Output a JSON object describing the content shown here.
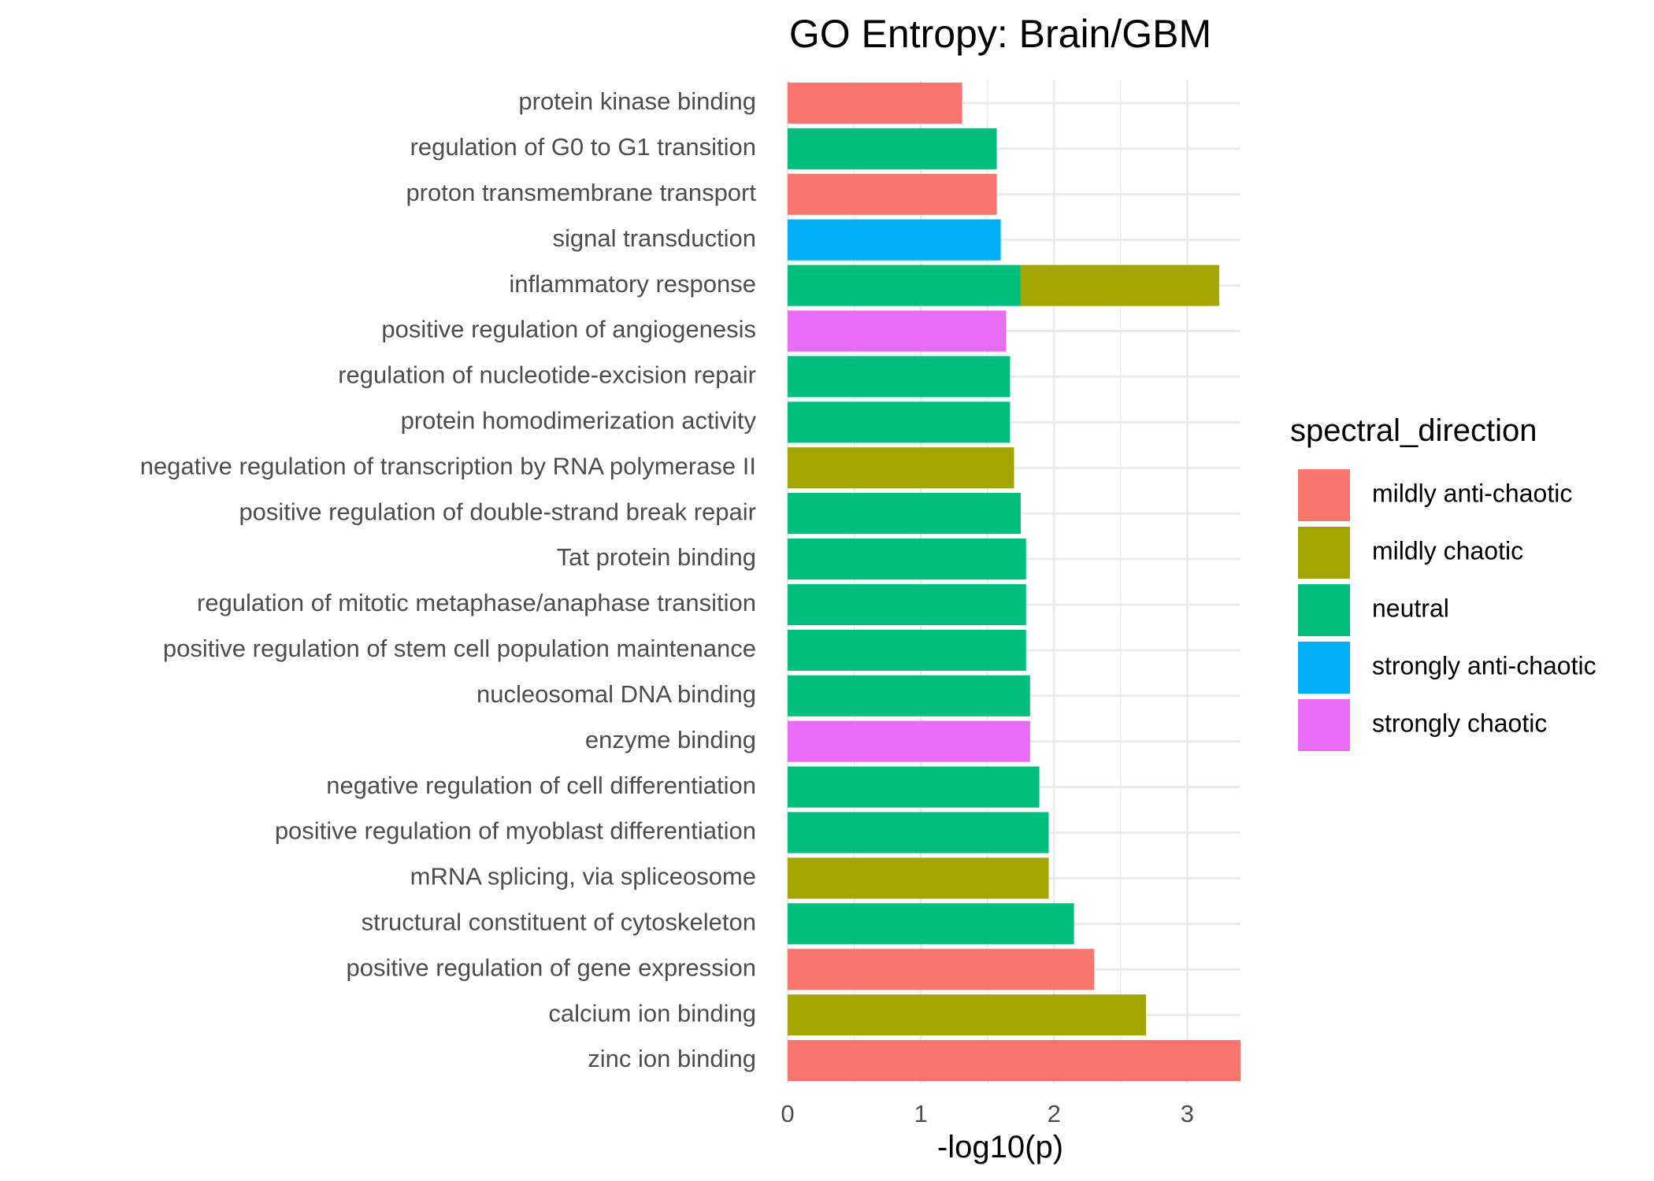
{
  "chart_data": {
    "type": "bar",
    "orientation": "horizontal",
    "stacked": true,
    "title": "GO Entropy: Brain/GBM",
    "xlabel": "-log10(p)",
    "ylabel": "",
    "xlim": [
      0,
      3.4
    ],
    "xticks": [
      0,
      1,
      2,
      3
    ],
    "xtick_labels": [
      "0",
      "1",
      "2",
      "3"
    ],
    "grid": true,
    "legend_position": "right",
    "legend_title": "spectral_direction",
    "legend": [
      {
        "name": "mildly anti-chaotic",
        "color": "#F8766D"
      },
      {
        "name": "mildly chaotic",
        "color": "#A3A500"
      },
      {
        "name": "neutral",
        "color": "#00BF7D"
      },
      {
        "name": "strongly anti-chaotic",
        "color": "#00B0F6"
      },
      {
        "name": "strongly chaotic",
        "color": "#E76BF3"
      }
    ],
    "categories": [
      "protein kinase binding",
      "regulation of G0 to G1 transition",
      "proton transmembrane transport",
      "signal transduction",
      "inflammatory response",
      "positive regulation of angiogenesis",
      "regulation of nucleotide-excision repair",
      "protein homodimerization activity",
      "negative regulation of transcription by RNA polymerase II",
      "positive regulation of double-strand break repair",
      "Tat protein binding",
      "regulation of mitotic metaphase/anaphase transition",
      "positive regulation of stem cell population maintenance",
      "nucleosomal DNA binding",
      "enzyme binding",
      "negative regulation of cell differentiation",
      "positive regulation of myoblast differentiation",
      "mRNA splicing, via spliceosome",
      "structural constituent of cytoskeleton",
      "positive regulation of gene expression",
      "calcium ion binding",
      "zinc ion binding"
    ],
    "bars": [
      {
        "category": "protein kinase binding",
        "segments": [
          {
            "direction": "mildly anti-chaotic",
            "value": 1.31
          }
        ]
      },
      {
        "category": "regulation of G0 to G1 transition",
        "segments": [
          {
            "direction": "neutral",
            "value": 1.57
          }
        ]
      },
      {
        "category": "proton transmembrane transport",
        "segments": [
          {
            "direction": "mildly anti-chaotic",
            "value": 1.57
          }
        ]
      },
      {
        "category": "signal transduction",
        "segments": [
          {
            "direction": "strongly anti-chaotic",
            "value": 1.6
          }
        ]
      },
      {
        "category": "inflammatory response",
        "segments": [
          {
            "direction": "neutral",
            "value": 1.75
          },
          {
            "direction": "mildly chaotic",
            "value": 1.49
          }
        ]
      },
      {
        "category": "positive regulation of angiogenesis",
        "segments": [
          {
            "direction": "strongly chaotic",
            "value": 1.64
          }
        ]
      },
      {
        "category": "regulation of nucleotide-excision repair",
        "segments": [
          {
            "direction": "neutral",
            "value": 1.67
          }
        ]
      },
      {
        "category": "protein homodimerization activity",
        "segments": [
          {
            "direction": "neutral",
            "value": 1.67
          }
        ]
      },
      {
        "category": "negative regulation of transcription by RNA polymerase II",
        "segments": [
          {
            "direction": "mildly chaotic",
            "value": 1.7
          }
        ]
      },
      {
        "category": "positive regulation of double-strand break repair",
        "segments": [
          {
            "direction": "neutral",
            "value": 1.75
          }
        ]
      },
      {
        "category": "Tat protein binding",
        "segments": [
          {
            "direction": "neutral",
            "value": 1.79
          }
        ]
      },
      {
        "category": "regulation of mitotic metaphase/anaphase transition",
        "segments": [
          {
            "direction": "neutral",
            "value": 1.79
          }
        ]
      },
      {
        "category": "positive regulation of stem cell population maintenance",
        "segments": [
          {
            "direction": "neutral",
            "value": 1.79
          }
        ]
      },
      {
        "category": "nucleosomal DNA binding",
        "segments": [
          {
            "direction": "neutral",
            "value": 1.82
          }
        ]
      },
      {
        "category": "enzyme binding",
        "segments": [
          {
            "direction": "strongly chaotic",
            "value": 1.82
          }
        ]
      },
      {
        "category": "negative regulation of cell differentiation",
        "segments": [
          {
            "direction": "neutral",
            "value": 1.89
          }
        ]
      },
      {
        "category": "positive regulation of myoblast differentiation",
        "segments": [
          {
            "direction": "neutral",
            "value": 1.96
          }
        ]
      },
      {
        "category": "mRNA splicing, via spliceosome",
        "segments": [
          {
            "direction": "mildly chaotic",
            "value": 1.96
          }
        ]
      },
      {
        "category": "structural constituent of cytoskeleton",
        "segments": [
          {
            "direction": "neutral",
            "value": 2.15
          }
        ]
      },
      {
        "category": "positive regulation of gene expression",
        "segments": [
          {
            "direction": "mildly anti-chaotic",
            "value": 2.3
          }
        ]
      },
      {
        "category": "calcium ion binding",
        "segments": [
          {
            "direction": "mildly chaotic",
            "value": 2.69
          }
        ]
      },
      {
        "category": "zinc ion binding",
        "segments": [
          {
            "direction": "mildly anti-chaotic",
            "value": 3.4
          }
        ]
      }
    ]
  }
}
